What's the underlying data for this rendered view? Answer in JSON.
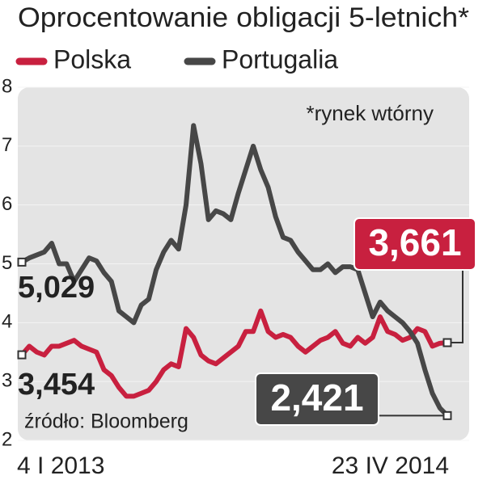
{
  "chart_data": {
    "type": "line",
    "title": "Oprocentowanie obligacji 5-letnich*",
    "annotations": [
      "*rynek wtórny",
      "źródło: Bloomberg"
    ],
    "categories": [
      "4 I 2013",
      null,
      null,
      null,
      null,
      null,
      null,
      null,
      null,
      null,
      null,
      null,
      null,
      null,
      null,
      null,
      null,
      null,
      null,
      null,
      null,
      null,
      null,
      null,
      null,
      null,
      null,
      null,
      null,
      null,
      null,
      null,
      null,
      null,
      null,
      null,
      null,
      null,
      null,
      null,
      null,
      null,
      null,
      null,
      null,
      null,
      null,
      null,
      null,
      null,
      null,
      null,
      null,
      null,
      null,
      null,
      null,
      "23 IV 2014"
    ],
    "series": [
      {
        "name": "Polska",
        "color": "#c8203f",
        "values": [
          3.454,
          3.6,
          3.5,
          3.45,
          3.6,
          3.6,
          3.65,
          3.7,
          3.6,
          3.55,
          3.5,
          3.2,
          3.1,
          2.9,
          2.75,
          2.75,
          2.8,
          2.85,
          3.0,
          3.2,
          3.3,
          3.25,
          3.9,
          3.75,
          3.45,
          3.35,
          3.3,
          3.4,
          3.5,
          3.6,
          3.85,
          3.85,
          4.2,
          3.85,
          3.75,
          3.8,
          3.75,
          3.6,
          3.5,
          3.6,
          3.7,
          3.75,
          3.85,
          3.65,
          3.6,
          3.75,
          3.65,
          3.75,
          4.1,
          3.85,
          3.8,
          3.7,
          3.75,
          3.9,
          3.85,
          3.6,
          3.65,
          3.661
        ],
        "value_labels": [
          "3,454",
          null,
          null,
          null,
          null,
          null,
          null,
          null,
          null,
          null,
          null,
          null,
          null,
          null,
          null,
          null,
          null,
          null,
          null,
          null,
          null,
          null,
          null,
          null,
          null,
          null,
          null,
          null,
          null,
          null,
          null,
          null,
          null,
          null,
          null,
          null,
          null,
          null,
          null,
          null,
          null,
          null,
          null,
          null,
          null,
          null,
          null,
          null,
          null,
          null,
          null,
          null,
          null,
          null,
          null,
          null,
          null,
          "3,661"
        ]
      },
      {
        "name": "Portugalia",
        "color": "#474747",
        "values": [
          5.029,
          5.1,
          5.15,
          5.2,
          5.35,
          5.0,
          5.0,
          4.7,
          4.9,
          5.1,
          5.05,
          4.85,
          4.7,
          4.2,
          4.1,
          4.0,
          4.3,
          4.4,
          4.9,
          5.2,
          5.4,
          5.25,
          6.0,
          7.35,
          6.7,
          5.75,
          5.9,
          5.85,
          5.75,
          6.2,
          6.6,
          7.0,
          6.6,
          6.3,
          5.8,
          5.45,
          5.4,
          5.2,
          5.05,
          4.9,
          4.9,
          5.0,
          4.85,
          4.95,
          4.95,
          4.9,
          4.5,
          4.1,
          4.35,
          4.2,
          4.1,
          4.0,
          3.85,
          3.65,
          3.2,
          2.8,
          2.55,
          2.421
        ],
        "value_labels": [
          "5,029",
          null,
          null,
          null,
          null,
          null,
          null,
          null,
          null,
          null,
          null,
          null,
          null,
          null,
          null,
          null,
          null,
          null,
          null,
          null,
          null,
          null,
          null,
          null,
          null,
          null,
          null,
          null,
          null,
          null,
          null,
          null,
          null,
          null,
          null,
          null,
          null,
          null,
          null,
          null,
          null,
          null,
          null,
          null,
          null,
          null,
          null,
          null,
          null,
          null,
          null,
          null,
          null,
          null,
          null,
          null,
          null,
          "2,421"
        ]
      }
    ],
    "ylim": [
      2,
      8
    ],
    "yticks": [
      2,
      3,
      4,
      5,
      6,
      7,
      8
    ],
    "grid": true
  }
}
